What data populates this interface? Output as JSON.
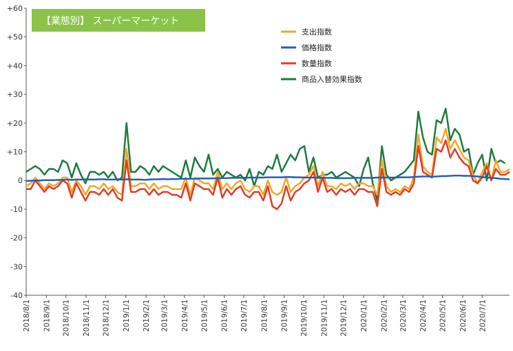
{
  "chart_data": {
    "type": "line",
    "title": "【業態別】 スーパーマーケット",
    "title_bg_color": "#8bc34a",
    "ylim": [
      -40,
      60
    ],
    "yticks": [
      "-40",
      "-30",
      "-20",
      "-10",
      "0",
      "+10",
      "+20",
      "+30",
      "+40",
      "+50",
      "+60"
    ],
    "grid": false,
    "legend_position": "top-right",
    "x_tick_labels": [
      "2018/8/1",
      "2018/9/1",
      "2018/10/1",
      "2018/11/1",
      "2018/12/1",
      "2019/1/1",
      "2019/2/1",
      "2019/3/1",
      "2019/4/1",
      "2019/5/1",
      "2019/6/1",
      "2019/7/1",
      "2019/8/1",
      "2019/9/1",
      "2019/10/1",
      "2019/11/1",
      "2019/12/1",
      "2020/1/1",
      "2020/2/1",
      "2020/3/1",
      "2020/4/1",
      "2020/5/1",
      "2020/6/1",
      "2020/7/1"
    ],
    "x_start": "2018-08-01",
    "x_step_days": 7,
    "series": [
      {
        "name": "支出指数",
        "color": "#f5a623",
        "values": [
          -2,
          -1,
          1,
          -1,
          -3,
          -1,
          -2,
          -1,
          1,
          1,
          -4,
          0,
          -2,
          -5,
          -2,
          -2,
          -3,
          -1,
          -3,
          -2,
          -4,
          -5,
          11,
          -2,
          -2,
          -1,
          -1,
          -3,
          -1,
          -3,
          -2,
          -2,
          -3,
          -3,
          -3,
          1,
          -5,
          1,
          0,
          -1,
          -1,
          -3,
          3,
          -3,
          -1,
          -3,
          -1,
          0,
          -3,
          -4,
          -2,
          -2,
          -5,
          0,
          -4,
          -5,
          -4,
          1,
          -4,
          -2,
          -1,
          1,
          2,
          5,
          -2,
          3,
          -2,
          -2,
          -3,
          -1,
          -2,
          -1,
          -3,
          -1,
          -1,
          -2,
          -2,
          -5,
          7,
          -2,
          -4,
          -3,
          -4,
          -2,
          -3,
          1,
          16,
          5,
          3,
          2,
          15,
          13,
          18,
          11,
          14,
          11,
          8,
          7,
          2,
          -1,
          3,
          6,
          0,
          7,
          3,
          3,
          4
        ]
      },
      {
        "name": "価格指数",
        "color": "#1f5fbf",
        "values": [
          -0.2,
          -0.1,
          0,
          0,
          0.1,
          0.1,
          0.1,
          0.2,
          0.2,
          0.3,
          0.2,
          0.3,
          0.3,
          0.4,
          0.3,
          0.3,
          0.4,
          0.4,
          0.3,
          0.3,
          0.4,
          0.3,
          0.4,
          0.3,
          0.3,
          0.3,
          0.2,
          0.3,
          0.4,
          0.4,
          0.5,
          0.4,
          0.5,
          0.5,
          0.6,
          0.6,
          0.6,
          0.6,
          0.7,
          0.7,
          0.7,
          0.7,
          0.8,
          0.8,
          0.8,
          0.9,
          0.9,
          0.9,
          0.9,
          1,
          1,
          1,
          1,
          1.1,
          1.1,
          1.1,
          1.1,
          1.2,
          1.2,
          1.1,
          1.1,
          1,
          1,
          1,
          0.9,
          0.9,
          0.9,
          0.9,
          0.8,
          0.8,
          0.8,
          0.8,
          0.9,
          0.9,
          0.9,
          0.9,
          0.9,
          1,
          1,
          1,
          1,
          1,
          1.1,
          1.1,
          1.1,
          1.2,
          1.3,
          1.4,
          1.4,
          1.3,
          1.4,
          1.5,
          1.5,
          1.6,
          1.7,
          1.7,
          1.6,
          1.6,
          1.5,
          1.4,
          1.2,
          1,
          0.9,
          0.8,
          0.6,
          0.5,
          0.4
        ]
      },
      {
        "name": "数量指数",
        "color": "#e03c28",
        "values": [
          -3,
          -3,
          0,
          -2,
          -4,
          -2,
          -3,
          -2,
          0,
          -1,
          -6,
          -1,
          -4,
          -7,
          -4,
          -4,
          -5,
          -3,
          -5,
          -3,
          -6,
          -7,
          7,
          -4,
          -4,
          -3,
          -3,
          -5,
          -3,
          -5,
          -4,
          -4,
          -5,
          -5,
          -6,
          -1,
          -7,
          -1,
          -2,
          -3,
          -3,
          -5,
          1,
          -6,
          -3,
          -5,
          -3,
          -2,
          -5,
          -6,
          -4,
          -4,
          -7,
          -2,
          -9,
          -10,
          -8,
          -2,
          -7,
          -4,
          -3,
          -1,
          0,
          3,
          -4,
          1,
          -4,
          -3,
          -5,
          -3,
          -4,
          -3,
          -5,
          -3,
          -3,
          -4,
          -4,
          -9,
          4,
          -4,
          -5,
          -4,
          -5,
          -3,
          -4,
          -1,
          12,
          3,
          2,
          1,
          11,
          10,
          14,
          8,
          11,
          8,
          6,
          5,
          0,
          -1,
          1,
          5,
          0,
          4,
          2,
          2,
          3
        ]
      },
      {
        "name": "商品入替効果指数",
        "color": "#1d7a3e",
        "values": [
          3,
          4,
          5,
          4,
          2,
          4,
          4,
          3,
          7,
          6,
          1,
          6,
          2,
          -1,
          3,
          3,
          2,
          3,
          1,
          3,
          0,
          1,
          20,
          3,
          3,
          5,
          4,
          2,
          5,
          3,
          5,
          4,
          3,
          2,
          1,
          7,
          1,
          8,
          5,
          3,
          9,
          2,
          4,
          1,
          3,
          2,
          1,
          2,
          0,
          4,
          -2,
          3,
          2,
          5,
          4,
          9,
          3,
          6,
          9,
          7,
          11,
          12,
          3,
          8,
          1,
          2,
          2,
          3,
          1,
          2,
          3,
          2,
          1,
          -2,
          4,
          8,
          -1,
          -7,
          12,
          2,
          0,
          1,
          2,
          3,
          5,
          7,
          24,
          15,
          10,
          9,
          21,
          20,
          25,
          14,
          18,
          16,
          10,
          11,
          2,
          6,
          9,
          0,
          11,
          6,
          7,
          6
        ]
      }
    ]
  }
}
